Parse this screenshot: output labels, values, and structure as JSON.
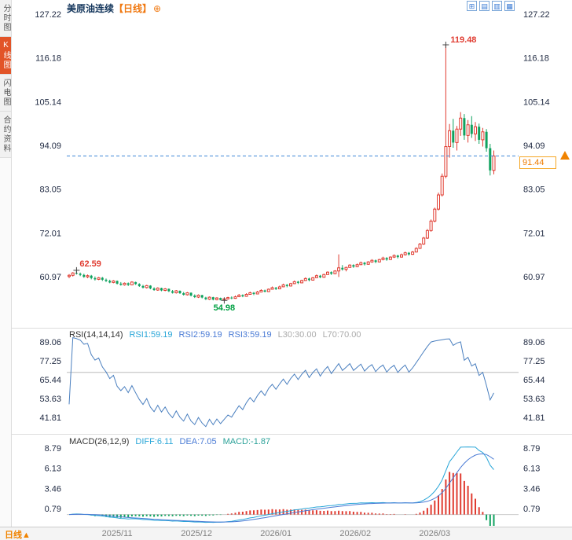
{
  "app": {
    "sidebar": {
      "tabs": [
        {
          "label": "分时图",
          "active": false
        },
        {
          "label": "K线图",
          "active": true
        },
        {
          "label": "闪电图",
          "active": false
        },
        {
          "label": "合约资料",
          "active": false
        }
      ]
    },
    "header": {
      "title": "美原油连续",
      "period": "【日线】",
      "settings_icon": "⊕"
    },
    "toolbar": {
      "icons": [
        {
          "name": "new-window-icon",
          "glyph": "⊞"
        },
        {
          "name": "panel-layout-icon",
          "glyph": "▤"
        },
        {
          "name": "list-view-icon",
          "glyph": "▥"
        },
        {
          "name": "grid-view-icon",
          "glyph": "▦"
        }
      ]
    },
    "rsi_header": {
      "name": "RSI(14,14,14)",
      "rsi1": "RSI1:59.19",
      "rsi2": "RSI2:59.19",
      "rsi3": "RSI3:59.19",
      "l30": "L30:30.00",
      "l70": "L70:70.00"
    },
    "macd_header": {
      "name": "MACD(26,12,9)",
      "diff": "DIFF:6.11",
      "dea": "DEA:7.05",
      "macd": "MACD:-1.87"
    },
    "price_tag": {
      "value": "91.44"
    },
    "bottom_bar": {
      "period": "日线",
      "arrow": "▲"
    },
    "indicator_icon": "⊛"
  },
  "colors": {
    "up": "#e03b30",
    "down": "#0fa25f",
    "low_label": "#00a042",
    "rsi_line": "#4a7fbf",
    "diff_line": "#29a6d8",
    "dea_line": "#4a7bd5",
    "dashed_line": "#3f86d6",
    "accent_orange": "#f08300",
    "axis_text": "#222c44",
    "date_text": "#808080"
  },
  "chart_data": {
    "type": "candlestick",
    "title": "美原油连续【日线】",
    "last_price": 91.44,
    "y_axis_main": [
      127.22,
      116.18,
      105.14,
      94.09,
      83.05,
      72.01,
      60.97
    ],
    "x_labels": [
      {
        "label": "2025/11",
        "i": 13
      },
      {
        "label": "2025/12",
        "i": 34.5
      },
      {
        "label": "2026/01",
        "i": 56
      },
      {
        "label": "2026/02",
        "i": 77.5
      },
      {
        "label": "2026/03",
        "i": 99
      }
    ],
    "high_label": {
      "value": 119.48,
      "index": 102
    },
    "low_label": {
      "value": 54.98,
      "index": 42
    },
    "early_high_label": {
      "value": 62.59,
      "index": 2
    },
    "rsi": {
      "periods": [
        14,
        14,
        14
      ],
      "ticks": [
        89.06,
        77.25,
        65.44,
        53.63,
        41.81
      ],
      "levels": [
        30,
        70
      ],
      "rsi1": 59.19,
      "rsi2": 59.19,
      "rsi3": 59.19
    },
    "macd": {
      "params": [
        26,
        12,
        9
      ],
      "ticks": [
        8.79,
        6.13,
        3.46,
        0.79
      ],
      "diff": 6.11,
      "dea": 7.05,
      "macd": -1.87
    },
    "candles": [
      [
        61.0,
        61.6,
        60.6,
        61.3
      ],
      [
        61.3,
        62.1,
        61.0,
        61.9
      ],
      [
        61.9,
        62.59,
        61.5,
        61.7
      ],
      [
        61.7,
        62.0,
        61.1,
        61.4
      ],
      [
        61.4,
        61.7,
        60.7,
        60.9
      ],
      [
        60.9,
        61.5,
        60.6,
        61.2
      ],
      [
        61.2,
        61.4,
        60.3,
        60.6
      ],
      [
        60.6,
        61.0,
        60.0,
        60.3
      ],
      [
        60.3,
        60.9,
        60.1,
        60.7
      ],
      [
        60.7,
        60.9,
        59.9,
        60.2
      ],
      [
        60.2,
        60.5,
        59.6,
        59.9
      ],
      [
        59.9,
        60.2,
        59.3,
        59.5
      ],
      [
        59.5,
        60.1,
        59.3,
        59.9
      ],
      [
        59.9,
        60.0,
        59.0,
        59.2
      ],
      [
        59.2,
        59.6,
        58.7,
        58.9
      ],
      [
        58.9,
        59.5,
        58.7,
        59.3
      ],
      [
        59.3,
        59.5,
        58.6,
        58.9
      ],
      [
        58.9,
        59.8,
        58.8,
        59.6
      ],
      [
        59.6,
        59.7,
        58.9,
        59.1
      ],
      [
        59.1,
        59.3,
        58.4,
        58.6
      ],
      [
        58.6,
        58.9,
        58.0,
        58.2
      ],
      [
        58.2,
        58.9,
        58.0,
        58.7
      ],
      [
        58.7,
        58.8,
        57.8,
        58.0
      ],
      [
        58.0,
        58.3,
        57.4,
        57.6
      ],
      [
        57.6,
        58.3,
        57.4,
        58.1
      ],
      [
        58.1,
        58.2,
        57.3,
        57.5
      ],
      [
        57.5,
        58.1,
        57.3,
        57.9
      ],
      [
        57.9,
        58.0,
        57.1,
        57.3
      ],
      [
        57.3,
        57.6,
        56.7,
        56.9
      ],
      [
        56.9,
        57.6,
        56.7,
        57.4
      ],
      [
        57.4,
        57.5,
        56.6,
        56.8
      ],
      [
        56.8,
        57.1,
        56.2,
        56.4
      ],
      [
        56.4,
        57.1,
        56.2,
        56.9
      ],
      [
        56.9,
        57.0,
        56.0,
        56.2
      ],
      [
        56.2,
        56.5,
        55.6,
        55.8
      ],
      [
        55.8,
        56.5,
        55.6,
        56.3
      ],
      [
        56.3,
        56.4,
        55.5,
        55.7
      ],
      [
        55.7,
        55.9,
        55.1,
        55.3
      ],
      [
        55.3,
        56.0,
        55.1,
        55.8
      ],
      [
        55.8,
        55.9,
        55.0,
        55.2
      ],
      [
        55.2,
        55.8,
        55.0,
        55.6
      ],
      [
        55.6,
        55.7,
        55.0,
        55.1
      ],
      [
        55.1,
        55.5,
        54.98,
        55.4
      ],
      [
        55.4,
        55.9,
        55.2,
        55.7
      ],
      [
        55.7,
        56.0,
        55.3,
        55.5
      ],
      [
        55.5,
        56.2,
        55.4,
        55.9
      ],
      [
        55.9,
        56.6,
        55.8,
        56.3
      ],
      [
        56.3,
        56.5,
        55.8,
        56.0
      ],
      [
        56.0,
        56.8,
        55.9,
        56.5
      ],
      [
        56.5,
        57.2,
        56.4,
        56.9
      ],
      [
        56.9,
        57.1,
        56.3,
        56.6
      ],
      [
        56.6,
        57.4,
        56.5,
        57.1
      ],
      [
        57.1,
        57.8,
        57.0,
        57.5
      ],
      [
        57.5,
        57.7,
        57.0,
        57.2
      ],
      [
        57.2,
        58.0,
        57.1,
        57.8
      ],
      [
        57.8,
        58.5,
        57.7,
        58.2
      ],
      [
        58.2,
        58.4,
        57.6,
        57.9
      ],
      [
        57.9,
        58.7,
        57.8,
        58.4
      ],
      [
        58.4,
        59.2,
        58.3,
        58.9
      ],
      [
        58.9,
        59.1,
        58.3,
        58.6
      ],
      [
        58.6,
        59.4,
        58.5,
        59.2
      ],
      [
        59.2,
        60.0,
        59.1,
        59.7
      ],
      [
        59.7,
        59.9,
        59.1,
        59.4
      ],
      [
        59.4,
        60.2,
        59.3,
        60.0
      ],
      [
        60.0,
        60.8,
        59.9,
        60.5
      ],
      [
        60.5,
        60.7,
        59.8,
        60.1
      ],
      [
        60.1,
        60.9,
        60.0,
        60.7
      ],
      [
        60.7,
        61.5,
        60.6,
        61.2
      ],
      [
        61.2,
        61.4,
        60.6,
        60.8
      ],
      [
        60.8,
        61.7,
        60.7,
        61.5
      ],
      [
        61.5,
        62.3,
        61.4,
        62.1
      ],
      [
        62.1,
        62.3,
        61.4,
        61.7
      ],
      [
        61.7,
        62.6,
        61.6,
        62.4
      ],
      [
        62.4,
        66.6,
        60.9,
        63.2
      ],
      [
        63.2,
        63.9,
        62.5,
        62.8
      ],
      [
        62.8,
        63.5,
        62.3,
        63.3
      ],
      [
        63.3,
        64.1,
        63.2,
        63.9
      ],
      [
        63.9,
        64.1,
        63.2,
        63.5
      ],
      [
        63.5,
        64.3,
        63.4,
        64.0
      ],
      [
        64.0,
        64.8,
        63.9,
        64.5
      ],
      [
        64.5,
        64.7,
        63.8,
        64.1
      ],
      [
        64.1,
        64.9,
        64.0,
        64.7
      ],
      [
        64.7,
        65.4,
        64.5,
        65.1
      ],
      [
        65.1,
        65.3,
        64.4,
        64.7
      ],
      [
        64.7,
        65.5,
        64.6,
        65.3
      ],
      [
        65.3,
        66.0,
        65.1,
        65.7
      ],
      [
        65.7,
        65.9,
        65.0,
        65.3
      ],
      [
        65.3,
        66.1,
        65.2,
        65.9
      ],
      [
        65.9,
        66.6,
        65.7,
        66.3
      ],
      [
        66.3,
        66.5,
        65.6,
        65.9
      ],
      [
        65.9,
        66.8,
        65.8,
        66.5
      ],
      [
        66.5,
        67.3,
        66.3,
        67.0
      ],
      [
        67.0,
        67.2,
        66.3,
        66.6
      ],
      [
        66.6,
        67.5,
        66.5,
        67.2
      ],
      [
        67.2,
        68.4,
        67.1,
        68.1
      ],
      [
        68.1,
        69.5,
        68.0,
        69.2
      ],
      [
        69.2,
        71.0,
        69.0,
        70.7
      ],
      [
        70.7,
        73.0,
        70.5,
        72.6
      ],
      [
        72.6,
        75.4,
        72.3,
        75.0
      ],
      [
        75.0,
        78.4,
        74.7,
        78.0
      ],
      [
        78.0,
        82.2,
        77.7,
        81.6
      ],
      [
        81.6,
        87.0,
        81.2,
        86.3
      ],
      [
        86.3,
        119.48,
        85.8,
        93.8
      ],
      [
        93.8,
        99.5,
        91.0,
        97.8
      ],
      [
        97.8,
        100.8,
        93.5,
        94.8
      ],
      [
        94.8,
        99.0,
        92.8,
        98.2
      ],
      [
        98.2,
        102.5,
        96.5,
        101.0
      ],
      [
        101.0,
        102.0,
        95.5,
        96.6
      ],
      [
        96.6,
        100.5,
        94.8,
        99.3
      ],
      [
        99.3,
        101.5,
        96.0,
        97.0
      ],
      [
        97.0,
        100.0,
        95.2,
        98.8
      ],
      [
        98.8,
        99.6,
        94.5,
        95.5
      ],
      [
        95.5,
        98.5,
        93.8,
        97.5
      ],
      [
        97.5,
        98.2,
        92.5,
        93.4
      ],
      [
        93.4,
        94.5,
        86.5,
        87.8
      ],
      [
        87.8,
        92.8,
        86.8,
        91.44
      ]
    ]
  }
}
